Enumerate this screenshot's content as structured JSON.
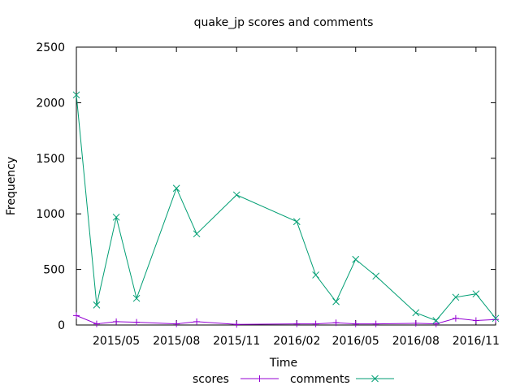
{
  "chart_data": {
    "type": "line",
    "title": "quake_jp scores and comments",
    "xlabel": "Time",
    "ylabel": "Frequency",
    "ylim": [
      0,
      2500
    ],
    "xlim": [
      "2015-03-01",
      "2016-12-01"
    ],
    "yticks": [
      0,
      500,
      1000,
      1500,
      2000,
      2500
    ],
    "xticks": [
      {
        "label": "2015/05",
        "date": "2015-05-01"
      },
      {
        "label": "2015/08",
        "date": "2015-08-01"
      },
      {
        "label": "2015/11",
        "date": "2015-11-01"
      },
      {
        "label": "2016/02",
        "date": "2016-02-01"
      },
      {
        "label": "2016/05",
        "date": "2016-05-01"
      },
      {
        "label": "2016/08",
        "date": "2016-08-01"
      },
      {
        "label": "2016/11",
        "date": "2016-11-01"
      }
    ],
    "grid": false,
    "legend_position": "bottom",
    "series": [
      {
        "name": "scores",
        "color": "#9400d3",
        "marker": "plus",
        "points": [
          {
            "x": "2015-03-01",
            "y": 85
          },
          {
            "x": "2015-04-01",
            "y": 10
          },
          {
            "x": "2015-05-01",
            "y": 30
          },
          {
            "x": "2015-06-01",
            "y": 25
          },
          {
            "x": "2015-08-01",
            "y": 10
          },
          {
            "x": "2015-09-01",
            "y": 30
          },
          {
            "x": "2015-11-01",
            "y": 5
          },
          {
            "x": "2016-02-01",
            "y": 10
          },
          {
            "x": "2016-03-01",
            "y": 10
          },
          {
            "x": "2016-04-01",
            "y": 20
          },
          {
            "x": "2016-05-01",
            "y": 10
          },
          {
            "x": "2016-06-01",
            "y": 10
          },
          {
            "x": "2016-08-01",
            "y": 15
          },
          {
            "x": "2016-09-01",
            "y": 10
          },
          {
            "x": "2016-10-01",
            "y": 60
          },
          {
            "x": "2016-11-01",
            "y": 40
          },
          {
            "x": "2016-12-01",
            "y": 50
          }
        ]
      },
      {
        "name": "comments",
        "color": "#009e73",
        "marker": "cross",
        "points": [
          {
            "x": "2015-03-01",
            "y": 2070
          },
          {
            "x": "2015-04-01",
            "y": 180
          },
          {
            "x": "2015-05-01",
            "y": 970
          },
          {
            "x": "2015-06-01",
            "y": 240
          },
          {
            "x": "2015-08-01",
            "y": 1230
          },
          {
            "x": "2015-09-01",
            "y": 820
          },
          {
            "x": "2015-11-01",
            "y": 1170
          },
          {
            "x": "2016-02-01",
            "y": 930
          },
          {
            "x": "2016-03-01",
            "y": 450
          },
          {
            "x": "2016-04-01",
            "y": 210
          },
          {
            "x": "2016-05-01",
            "y": 590
          },
          {
            "x": "2016-06-01",
            "y": 440
          },
          {
            "x": "2016-08-01",
            "y": 110
          },
          {
            "x": "2016-09-01",
            "y": 40
          },
          {
            "x": "2016-10-01",
            "y": 250
          },
          {
            "x": "2016-11-01",
            "y": 280
          },
          {
            "x": "2016-12-01",
            "y": 60
          }
        ]
      }
    ]
  }
}
